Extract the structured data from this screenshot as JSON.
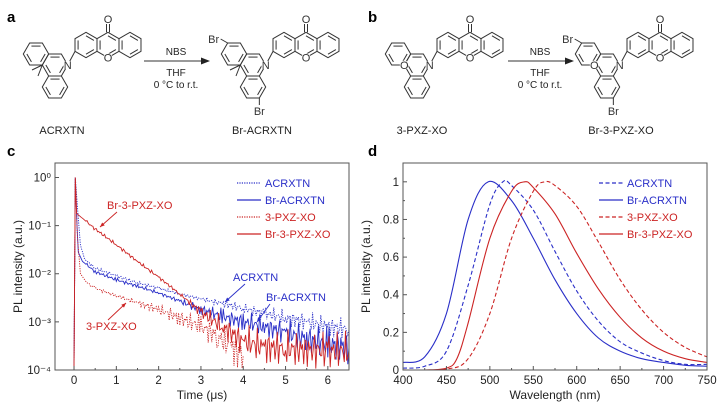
{
  "panels": {
    "a": "a",
    "b": "b",
    "c": "c",
    "d": "d"
  },
  "colors": {
    "blue": "#2a2fc8",
    "red": "#cc2424",
    "axis": "#555555",
    "text": "#222222"
  },
  "schemes": [
    {
      "reactant": "ACRXTN",
      "product": "Br-ACRXTN",
      "reagent": "NBS",
      "solvent": "THF",
      "conditions": "0 °C to r.t."
    },
    {
      "reactant": "3-PXZ-XO",
      "product": "Br-3-PXZ-XO",
      "reagent": "NBS",
      "solvent": "THF",
      "conditions": "0 °C to r.t."
    }
  ],
  "atoms": {
    "oxygen": "O",
    "nitrogen": "N",
    "bromine": "Br"
  },
  "chart_data": [
    {
      "type": "line",
      "panel": "c",
      "xlabel": "Time (μs)",
      "ylabel": "PL intensity (a.u.)",
      "xlim": [
        -0.45,
        6.5
      ],
      "ylim": [
        0.0001,
        2
      ],
      "yscale": "log",
      "xticks": [
        0,
        1,
        2,
        3,
        4,
        5,
        6
      ],
      "xtick_labels": [
        "0",
        "1",
        "2",
        "3",
        "4",
        "5",
        "6"
      ],
      "yticks": [
        1,
        0.1,
        0.01,
        0.001,
        0.0001
      ],
      "ytick_labels": [
        "10⁰",
        "10⁻¹",
        "10⁻²",
        "10⁻³",
        "10⁻⁴"
      ],
      "grid": false,
      "legend_position": "top-right",
      "series": [
        {
          "name": "ACRXTN",
          "color": "#2a2fc8",
          "style": "dotted",
          "points": [
            [
              0,
              0.0001
            ],
            [
              0.03,
              1
            ],
            [
              0.08,
              0.25
            ],
            [
              0.15,
              0.04
            ],
            [
              0.25,
              0.02
            ],
            [
              0.5,
              0.013
            ],
            [
              1,
              0.009
            ],
            [
              1.5,
              0.0065
            ],
            [
              2,
              0.005
            ],
            [
              2.5,
              0.0038
            ],
            [
              3,
              0.003
            ],
            [
              3.5,
              0.0024
            ],
            [
              4,
              0.0019
            ],
            [
              4.5,
              0.0015
            ],
            [
              5,
              0.0012
            ],
            [
              5.5,
              0.001
            ],
            [
              6,
              0.0008
            ],
            [
              6.5,
              0.0007
            ]
          ]
        },
        {
          "name": "Br-ACRXTN",
          "color": "#2a2fc8",
          "style": "solid",
          "points": [
            [
              0,
              0.0001
            ],
            [
              0.03,
              1
            ],
            [
              0.07,
              0.1
            ],
            [
              0.1,
              0.028
            ],
            [
              0.2,
              0.018
            ],
            [
              0.5,
              0.011
            ],
            [
              1,
              0.0075
            ],
            [
              1.5,
              0.0055
            ],
            [
              2,
              0.004
            ],
            [
              2.5,
              0.0027
            ],
            [
              3,
              0.0018
            ],
            [
              3.5,
              0.0013
            ],
            [
              4,
              0.001
            ],
            [
              4.5,
              0.0008
            ],
            [
              5,
              0.0006
            ],
            [
              5.5,
              0.00045
            ],
            [
              6,
              0.00035
            ],
            [
              6.5,
              0.0003
            ]
          ]
        },
        {
          "name": "3-PXZ-XO",
          "color": "#cc2424",
          "style": "dotted",
          "points": [
            [
              0,
              0.0001
            ],
            [
              0.03,
              1
            ],
            [
              0.08,
              0.06
            ],
            [
              0.15,
              0.01
            ],
            [
              0.3,
              0.0065
            ],
            [
              0.5,
              0.005
            ],
            [
              1,
              0.0035
            ],
            [
              1.5,
              0.0025
            ],
            [
              2,
              0.0018
            ],
            [
              2.5,
              0.0012
            ],
            [
              3,
              0.0008
            ],
            [
              3.4,
              0.0005
            ],
            [
              3.7,
              0.0003
            ],
            [
              4,
              0.0002
            ]
          ]
        },
        {
          "name": "Br-3-PXZ-XO",
          "color": "#cc2424",
          "style": "solid",
          "points": [
            [
              0,
              0.0001
            ],
            [
              0.03,
              1
            ],
            [
              0.06,
              0.18
            ],
            [
              0.5,
              0.085
            ],
            [
              1,
              0.04
            ],
            [
              1.5,
              0.018
            ],
            [
              2,
              0.0085
            ],
            [
              2.5,
              0.0038
            ],
            [
              3,
              0.0016
            ],
            [
              3.5,
              0.0008
            ],
            [
              4,
              0.0004
            ],
            [
              4.5,
              0.0003
            ],
            [
              5,
              0.00028
            ],
            [
              6,
              0.00025
            ],
            [
              6.5,
              0.00025
            ]
          ]
        }
      ],
      "annotations": [
        "Br-3-PXZ-XO",
        "ACRXTN",
        "Br-ACRXTN",
        "3-PXZ-XO"
      ]
    },
    {
      "type": "line",
      "panel": "d",
      "xlabel": "Wavelength (nm)",
      "ylabel": "PL intensity (a.u.)",
      "xlim": [
        400,
        750
      ],
      "ylim": [
        0,
        1.1
      ],
      "xticks": [
        400,
        450,
        500,
        550,
        600,
        650,
        700,
        750
      ],
      "xtick_labels": [
        "400",
        "450",
        "500",
        "550",
        "600",
        "650",
        "700",
        "750"
      ],
      "yticks": [
        0,
        0.2,
        0.4,
        0.6,
        0.8,
        1
      ],
      "ytick_labels": [
        "0",
        "0.2",
        "0.4",
        "0.6",
        "0.8",
        "1"
      ],
      "grid": false,
      "legend_position": "top-right",
      "series": [
        {
          "name": "ACRXTN",
          "color": "#2a2fc8",
          "style": "dashed",
          "points": [
            [
              400,
              0.01
            ],
            [
              425,
              0.02
            ],
            [
              450,
              0.1
            ],
            [
              475,
              0.45
            ],
            [
              500,
              0.88
            ],
            [
              515,
              1.0
            ],
            [
              525,
              0.98
            ],
            [
              550,
              0.85
            ],
            [
              575,
              0.63
            ],
            [
              600,
              0.42
            ],
            [
              625,
              0.26
            ],
            [
              650,
              0.15
            ],
            [
              675,
              0.09
            ],
            [
              700,
              0.05
            ],
            [
              725,
              0.03
            ],
            [
              750,
              0.03
            ]
          ]
        },
        {
          "name": "Br-ACRXTN",
          "color": "#2a2fc8",
          "style": "solid",
          "points": [
            [
              400,
              0.04
            ],
            [
              425,
              0.07
            ],
            [
              450,
              0.3
            ],
            [
              475,
              0.8
            ],
            [
              498,
              1.0
            ],
            [
              525,
              0.9
            ],
            [
              550,
              0.7
            ],
            [
              575,
              0.48
            ],
            [
              600,
              0.3
            ],
            [
              625,
              0.17
            ],
            [
              650,
              0.1
            ],
            [
              675,
              0.06
            ],
            [
              700,
              0.04
            ],
            [
              725,
              0.025
            ],
            [
              750,
              0.02
            ]
          ]
        },
        {
          "name": "3-PXZ-XO",
          "color": "#cc2424",
          "style": "dashed",
          "points": [
            [
              400,
              0
            ],
            [
              450,
              0.005
            ],
            [
              475,
              0.06
            ],
            [
              500,
              0.3
            ],
            [
              525,
              0.7
            ],
            [
              550,
              0.95
            ],
            [
              563,
              1.0
            ],
            [
              575,
              0.98
            ],
            [
              600,
              0.87
            ],
            [
              625,
              0.68
            ],
            [
              650,
              0.48
            ],
            [
              675,
              0.32
            ],
            [
              700,
              0.2
            ],
            [
              725,
              0.12
            ],
            [
              750,
              0.07
            ]
          ]
        },
        {
          "name": "Br-3-PXZ-XO",
          "color": "#cc2424",
          "style": "solid",
          "points": [
            [
              400,
              0
            ],
            [
              425,
              0
            ],
            [
              450,
              0.01
            ],
            [
              462,
              0.06
            ],
            [
              475,
              0.25
            ],
            [
              500,
              0.7
            ],
            [
              525,
              0.95
            ],
            [
              540,
              1.0
            ],
            [
              550,
              0.97
            ],
            [
              575,
              0.83
            ],
            [
              600,
              0.62
            ],
            [
              625,
              0.43
            ],
            [
              650,
              0.28
            ],
            [
              675,
              0.17
            ],
            [
              700,
              0.1
            ],
            [
              725,
              0.06
            ],
            [
              750,
              0.04
            ]
          ]
        }
      ]
    }
  ]
}
